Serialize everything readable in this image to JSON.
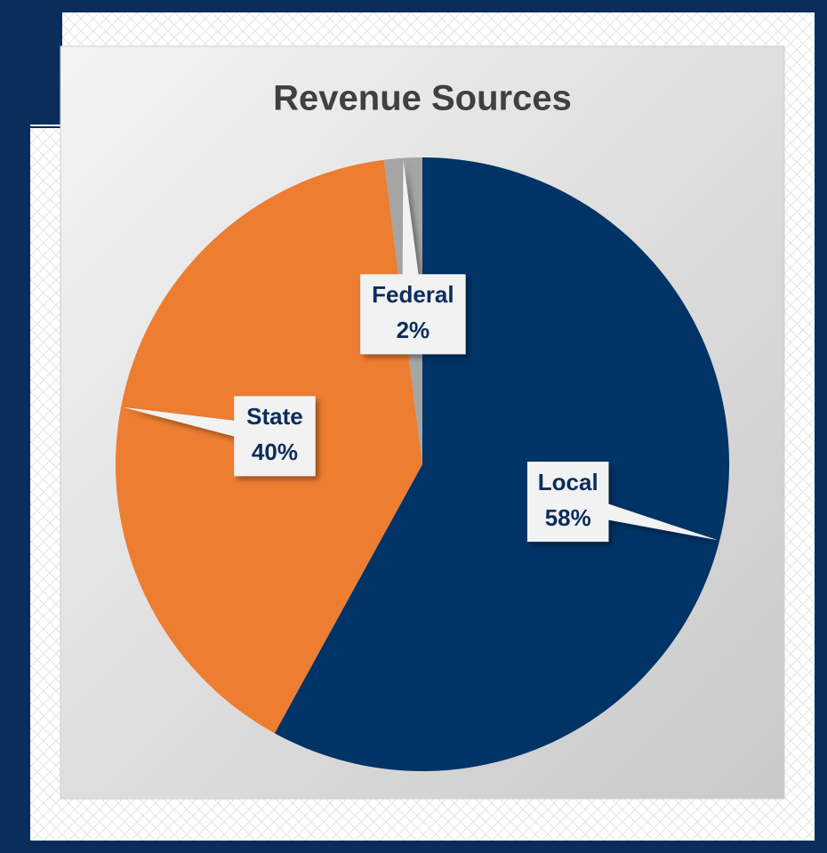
{
  "chart_data": {
    "type": "pie",
    "title": "Revenue Sources",
    "categories": [
      "Local",
      "State",
      "Federal"
    ],
    "values": [
      58,
      40,
      2
    ],
    "value_labels": [
      "58%",
      "40%",
      "2%"
    ],
    "colors": [
      "#003366",
      "#ed7d31",
      "#a5a5a5"
    ]
  }
}
